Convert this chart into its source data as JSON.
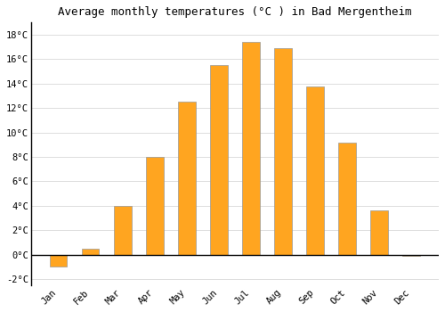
{
  "title": "Average monthly temperatures (°C ) in Bad Mergentheim",
  "months": [
    "Jan",
    "Feb",
    "Mar",
    "Apr",
    "May",
    "Jun",
    "Jul",
    "Aug",
    "Sep",
    "Oct",
    "Nov",
    "Dec"
  ],
  "values": [
    -1.0,
    0.5,
    4.0,
    8.0,
    12.5,
    15.5,
    17.4,
    16.9,
    13.8,
    9.2,
    3.6,
    -0.1
  ],
  "bar_color": "#FFA520",
  "bar_edge_color": "#999999",
  "ylim": [
    -2.5,
    19
  ],
  "yticks": [
    -2,
    0,
    2,
    4,
    6,
    8,
    10,
    12,
    14,
    16,
    18
  ],
  "ytick_labels": [
    "-2°C",
    "0°C",
    "2°C",
    "4°C",
    "6°C",
    "8°C",
    "10°C",
    "12°C",
    "14°C",
    "16°C",
    "18°C"
  ],
  "background_color": "#ffffff",
  "plot_bg_color": "#ffffff",
  "grid_color": "#dddddd",
  "title_fontsize": 9,
  "tick_fontsize": 7.5,
  "bar_width": 0.55
}
